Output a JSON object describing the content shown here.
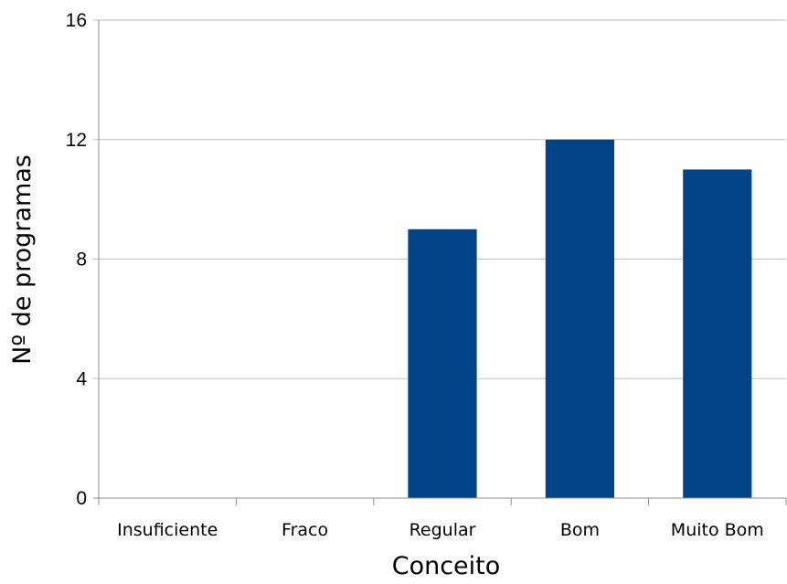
{
  "chart_data": {
    "type": "bar",
    "title": "",
    "xlabel": "Conceito",
    "ylabel": "Nº de programas",
    "categories": [
      "Insuficiente",
      "Fraco",
      "Regular",
      "Bom",
      "Muito Bom"
    ],
    "values": [
      0,
      0,
      9,
      12,
      11
    ],
    "ylim": [
      0,
      16
    ],
    "yticks": [
      "0",
      "4",
      "8",
      "12",
      "16"
    ],
    "grid": true,
    "legend": "none",
    "bar_color": "#004488"
  }
}
